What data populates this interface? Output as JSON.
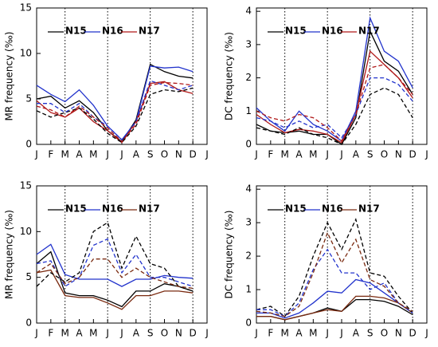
{
  "chart_data": [
    {
      "type": "line",
      "ylabel": "MR frequency (‰)",
      "categories": [
        "J",
        "F",
        "M",
        "A",
        "M",
        "J",
        "J",
        "A",
        "S",
        "O",
        "N",
        "D",
        "J"
      ],
      "ylim": [
        0,
        15
      ],
      "yticks": [
        0,
        5,
        10,
        15
      ],
      "season_lines": [
        2,
        5,
        8,
        11
      ],
      "series": [
        {
          "name": "N15",
          "color": "#000000",
          "values": [
            5.0,
            5.3,
            4.0,
            4.8,
            3.5,
            1.5,
            0.3,
            2.7,
            8.8,
            8.0,
            7.5,
            7.3,
            null
          ]
        },
        {
          "name": "N16",
          "color": "#2233cc",
          "values": [
            6.5,
            5.5,
            4.7,
            6.0,
            4.3,
            2.0,
            0.5,
            2.5,
            8.6,
            8.4,
            8.5,
            8.0,
            null
          ]
        },
        {
          "name": "N17",
          "color": "#b01818",
          "values": [
            4.8,
            3.5,
            3.0,
            4.0,
            2.5,
            1.5,
            0.2,
            2.5,
            6.7,
            6.9,
            6.0,
            5.6,
            null
          ]
        },
        {
          "color": "#000000",
          "dashed": true,
          "values": [
            3.7,
            3.0,
            3.5,
            4.0,
            2.8,
            1.2,
            0.2,
            2.0,
            5.5,
            6.0,
            5.8,
            6.2,
            null
          ]
        },
        {
          "color": "#2233cc",
          "dashed": true,
          "values": [
            4.5,
            4.5,
            3.5,
            4.5,
            3.0,
            2.0,
            0.5,
            2.5,
            7.0,
            6.5,
            6.0,
            6.5,
            null
          ]
        },
        {
          "color": "#b01818",
          "dashed": true,
          "values": [
            4.2,
            3.8,
            3.0,
            4.2,
            3.0,
            1.8,
            0.3,
            2.2,
            6.5,
            6.8,
            6.7,
            6.5,
            null
          ]
        }
      ]
    },
    {
      "type": "line",
      "ylabel": "DC frequency (‰)",
      "categories": [
        "J",
        "F",
        "M",
        "A",
        "M",
        "J",
        "J",
        "A",
        "S",
        "O",
        "N",
        "D",
        "J"
      ],
      "ylim": [
        0,
        4.1
      ],
      "yticks": [
        0,
        1,
        2,
        3,
        4
      ],
      "season_lines": [
        2,
        5,
        8,
        11
      ],
      "series": [
        {
          "name": "N15",
          "color": "#000000",
          "values": [
            0.6,
            0.4,
            0.35,
            0.4,
            0.3,
            0.3,
            0.0,
            0.8,
            3.4,
            2.5,
            2.2,
            1.5,
            null
          ]
        },
        {
          "name": "N16",
          "color": "#2233cc",
          "values": [
            1.1,
            0.7,
            0.4,
            1.0,
            0.6,
            0.4,
            0.1,
            1.0,
            3.8,
            2.8,
            2.5,
            1.7,
            null
          ]
        },
        {
          "name": "N17",
          "color": "#b01818",
          "values": [
            0.9,
            0.6,
            0.35,
            0.45,
            0.4,
            0.3,
            0.05,
            0.9,
            2.8,
            2.4,
            2.0,
            1.4,
            null
          ]
        },
        {
          "color": "#000000",
          "dashed": true,
          "values": [
            0.5,
            0.4,
            0.3,
            0.5,
            0.3,
            0.2,
            0.0,
            0.6,
            1.5,
            1.7,
            1.5,
            0.8,
            null
          ]
        },
        {
          "color": "#2233cc",
          "dashed": true,
          "values": [
            0.8,
            0.7,
            0.5,
            0.7,
            0.5,
            0.6,
            0.2,
            0.9,
            2.0,
            2.0,
            1.8,
            1.3,
            null
          ]
        },
        {
          "color": "#b01818",
          "dashed": true,
          "values": [
            1.0,
            0.8,
            0.7,
            0.9,
            0.8,
            0.5,
            0.1,
            0.9,
            2.3,
            2.4,
            2.0,
            1.5,
            null
          ]
        }
      ]
    },
    {
      "type": "line",
      "ylabel": "MR frequency (‰)",
      "categories": [
        "J",
        "F",
        "M",
        "A",
        "M",
        "J",
        "J",
        "A",
        "S",
        "O",
        "N",
        "D",
        "J"
      ],
      "ylim": [
        0,
        15
      ],
      "yticks": [
        0,
        5,
        10,
        15
      ],
      "season_lines": [
        2,
        5,
        8,
        11
      ],
      "series": [
        {
          "name": "N15",
          "color": "#000000",
          "values": [
            6.5,
            7.8,
            3.3,
            3.0,
            3.0,
            2.5,
            1.8,
            3.5,
            3.5,
            4.3,
            4.0,
            3.5,
            null
          ]
        },
        {
          "name": "N16",
          "color": "#2233cc",
          "values": [
            7.5,
            8.6,
            5.3,
            4.8,
            4.8,
            4.8,
            4.0,
            4.8,
            4.8,
            5.2,
            5.0,
            4.9,
            null
          ]
        },
        {
          "name": "N17",
          "color": "#7a2a10",
          "values": [
            5.5,
            5.8,
            3.0,
            2.8,
            2.8,
            2.2,
            1.5,
            3.0,
            3.0,
            3.5,
            3.5,
            3.3,
            null
          ]
        },
        {
          "color": "#000000",
          "dashed": true,
          "values": [
            4.0,
            5.5,
            4.5,
            5.5,
            10.0,
            11.0,
            6.0,
            9.5,
            6.5,
            6.0,
            4.0,
            3.5,
            null
          ]
        },
        {
          "color": "#2233cc",
          "dashed": true,
          "values": [
            6.5,
            6.8,
            4.0,
            5.0,
            8.5,
            9.2,
            5.5,
            7.5,
            5.0,
            5.0,
            4.5,
            4.0,
            null
          ]
        },
        {
          "color": "#7a2a10",
          "dashed": true,
          "values": [
            5.5,
            6.5,
            4.3,
            5.0,
            7.0,
            7.0,
            5.0,
            6.0,
            5.0,
            4.5,
            4.0,
            3.8,
            null
          ]
        }
      ]
    },
    {
      "type": "line",
      "ylabel": "DC frequency (‰)",
      "categories": [
        "J",
        "F",
        "M",
        "A",
        "M",
        "J",
        "J",
        "A",
        "S",
        "O",
        "N",
        "D",
        "J"
      ],
      "ylim": [
        0,
        4.1
      ],
      "yticks": [
        0,
        1,
        2,
        3,
        4
      ],
      "season_lines": [
        2,
        5,
        8,
        11
      ],
      "series": [
        {
          "name": "N15",
          "color": "#000000",
          "values": [
            0.2,
            0.2,
            0.1,
            0.2,
            0.3,
            0.45,
            0.35,
            0.7,
            0.7,
            0.65,
            0.5,
            0.25,
            null
          ]
        },
        {
          "name": "N16",
          "color": "#2233cc",
          "values": [
            0.3,
            0.3,
            0.15,
            0.3,
            0.6,
            0.95,
            0.9,
            1.3,
            1.2,
            0.9,
            0.6,
            0.3,
            null
          ]
        },
        {
          "name": "N17",
          "color": "#7a2a10",
          "values": [
            0.2,
            0.2,
            0.1,
            0.2,
            0.3,
            0.4,
            0.35,
            0.8,
            0.8,
            0.75,
            0.6,
            0.3,
            null
          ]
        },
        {
          "color": "#000000",
          "dashed": true,
          "values": [
            0.4,
            0.5,
            0.2,
            0.8,
            2.0,
            3.0,
            2.2,
            3.1,
            1.5,
            1.4,
            0.8,
            0.3,
            null
          ]
        },
        {
          "color": "#2233cc",
          "dashed": true,
          "values": [
            0.4,
            0.4,
            0.2,
            0.6,
            1.6,
            2.2,
            1.5,
            1.5,
            1.0,
            1.2,
            0.6,
            0.3,
            null
          ]
        },
        {
          "color": "#7a2a10",
          "dashed": true,
          "values": [
            0.35,
            0.3,
            0.2,
            0.5,
            1.5,
            2.7,
            1.8,
            2.5,
            1.3,
            1.1,
            0.6,
            0.35,
            null
          ]
        }
      ]
    }
  ]
}
